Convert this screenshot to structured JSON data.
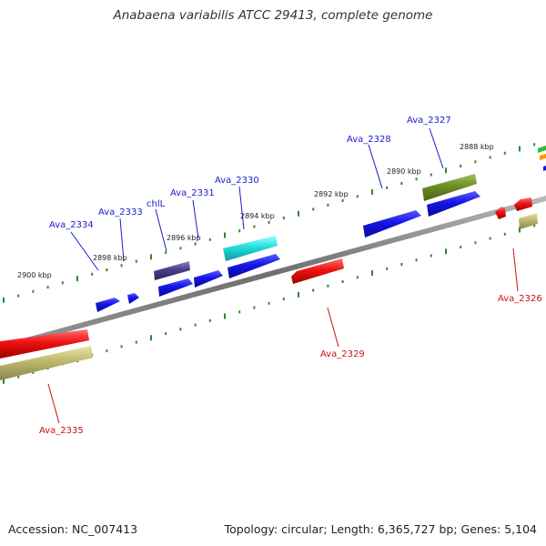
{
  "title": "Anabaena variabilis ATCC 29413, complete genome",
  "footer": {
    "accession": "Accession: NC_007413",
    "topology": "Topology: circular; Length: 6,365,727 bp; Genes: 5,104"
  },
  "colors": {
    "backbone": "#808080",
    "tick": "#2e8b2e",
    "forward_label": "#1a1acc",
    "reverse_label": "#cc1111",
    "gene_blue": "#1515e6",
    "gene_red": "#ee1111",
    "gene_cyan": "#22dddd",
    "gene_olive": "#6b8e23",
    "gene_khaki": "#bdb76b",
    "gene_slate": "#483d8b"
  },
  "kbp_labels": [
    "2888 kbp",
    "2890 kbp",
    "2892 kbp",
    "2894 kbp",
    "2896 kbp",
    "2898 kbp",
    "2900 kbp"
  ],
  "gene_labels": {
    "forward": [
      "Ava_2327",
      "Ava_2328",
      "Ava_2330",
      "Ava_2331",
      "chlL",
      "Ava_2333",
      "Ava_2334"
    ],
    "reverse": [
      "Ava_2326",
      "Ava_2329",
      "Ava_2335"
    ]
  }
}
